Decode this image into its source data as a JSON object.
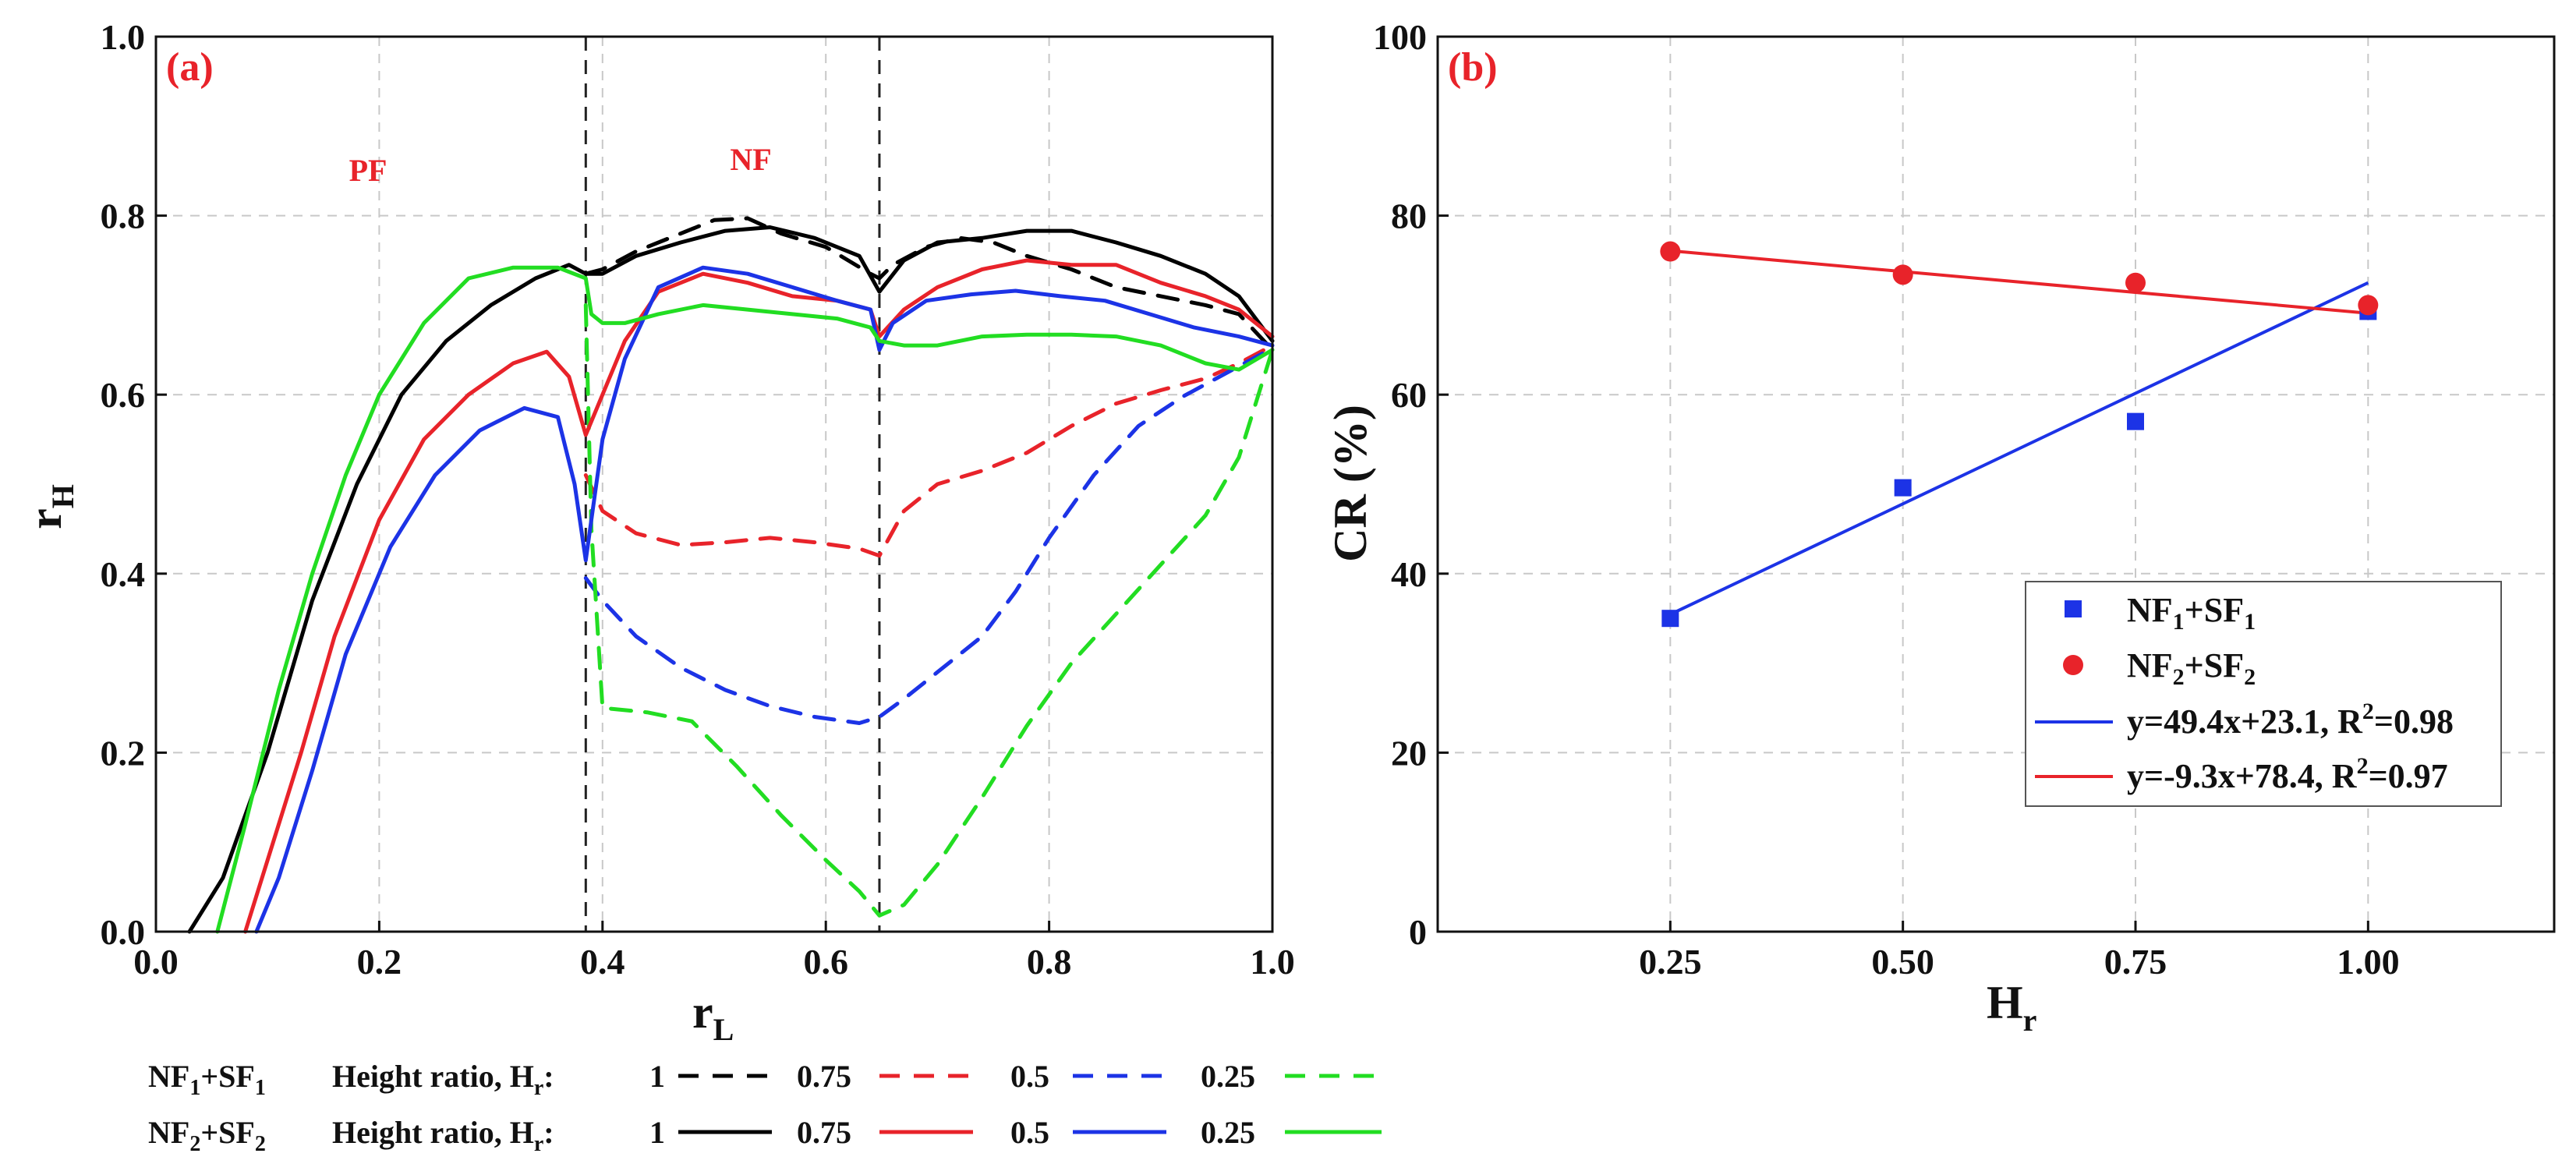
{
  "chart_data": [
    {
      "panel": "(a)",
      "type": "line",
      "xlabel": "r",
      "xlabel_sub": "L",
      "ylabel": "r",
      "ylabel_sub": "H",
      "xlim": [
        0.0,
        1.0
      ],
      "ylim": [
        0.0,
        1.0
      ],
      "x_ticks": [
        "0.0",
        "0.2",
        "0.4",
        "0.6",
        "0.8",
        "1.0"
      ],
      "y_ticks": [
        "0.0",
        "0.2",
        "0.4",
        "0.6",
        "0.8",
        "1.0"
      ],
      "grid": true,
      "region_labels": [
        {
          "text": "PF",
          "x": 0.19,
          "y": 0.85
        },
        {
          "text": "NF",
          "x": 0.53,
          "y": 0.86
        }
      ],
      "vlines": [
        0.385,
        0.648
      ],
      "series": [
        {
          "name": "NF1+SF1, Hr 1",
          "group": "NF1+SF1",
          "hr": "1",
          "color": "#000000",
          "dash": true,
          "x": [
            0.385,
            0.4,
            0.43,
            0.46,
            0.5,
            0.53,
            0.56,
            0.6,
            0.64,
            0.648,
            0.66,
            0.69,
            0.72,
            0.75,
            0.78,
            0.82,
            0.86,
            0.9,
            0.94,
            0.97,
            1.0
          ],
          "y": [
            0.735,
            0.74,
            0.76,
            0.775,
            0.795,
            0.797,
            0.78,
            0.765,
            0.735,
            0.73,
            0.745,
            0.765,
            0.775,
            0.77,
            0.755,
            0.74,
            0.72,
            0.71,
            0.7,
            0.69,
            0.65
          ]
        },
        {
          "name": "NF1+SF1, Hr 0.75",
          "group": "NF1+SF1",
          "hr": "0.75",
          "color": "#e8232a",
          "dash": true,
          "x": [
            0.385,
            0.4,
            0.43,
            0.47,
            0.51,
            0.55,
            0.59,
            0.63,
            0.648,
            0.67,
            0.7,
            0.74,
            0.78,
            0.82,
            0.86,
            0.9,
            0.94,
            0.97,
            1.0
          ],
          "y": [
            0.51,
            0.47,
            0.445,
            0.432,
            0.435,
            0.44,
            0.435,
            0.428,
            0.42,
            0.47,
            0.5,
            0.515,
            0.535,
            0.565,
            0.59,
            0.605,
            0.618,
            0.635,
            0.655
          ]
        },
        {
          "name": "NF1+SF1, Hr 0.5",
          "group": "NF1+SF1",
          "hr": "0.5",
          "color": "#1c33e6",
          "dash": true,
          "x": [
            0.385,
            0.4,
            0.43,
            0.47,
            0.51,
            0.55,
            0.59,
            0.63,
            0.648,
            0.67,
            0.7,
            0.74,
            0.77,
            0.8,
            0.84,
            0.88,
            0.92,
            0.96,
            1.0
          ],
          "y": [
            0.395,
            0.37,
            0.33,
            0.295,
            0.27,
            0.252,
            0.24,
            0.233,
            0.24,
            0.26,
            0.29,
            0.33,
            0.38,
            0.44,
            0.51,
            0.565,
            0.598,
            0.625,
            0.652
          ]
        },
        {
          "name": "NF1+SF1, Hr 0.25",
          "group": "NF1+SF1",
          "hr": "0.25",
          "color": "#22dd22",
          "dash": true,
          "x": [
            0.385,
            0.39,
            0.4,
            0.44,
            0.48,
            0.52,
            0.56,
            0.6,
            0.63,
            0.648,
            0.67,
            0.7,
            0.74,
            0.78,
            0.82,
            0.86,
            0.9,
            0.94,
            0.97,
            1.0
          ],
          "y": [
            0.7,
            0.45,
            0.25,
            0.245,
            0.235,
            0.185,
            0.13,
            0.08,
            0.045,
            0.018,
            0.03,
            0.075,
            0.15,
            0.23,
            0.3,
            0.355,
            0.41,
            0.465,
            0.53,
            0.65
          ]
        },
        {
          "name": "NF2+SF2, Hr 1",
          "group": "NF2+SF2",
          "hr": "1",
          "color": "#000000",
          "dash": false,
          "x": [
            0.03,
            0.06,
            0.1,
            0.14,
            0.18,
            0.22,
            0.26,
            0.3,
            0.34,
            0.37,
            0.385,
            0.4,
            0.43,
            0.47,
            0.51,
            0.55,
            0.59,
            0.63,
            0.648,
            0.67,
            0.7,
            0.74,
            0.78,
            0.82,
            0.86,
            0.9,
            0.94,
            0.97,
            1.0
          ],
          "y": [
            0.0,
            0.06,
            0.2,
            0.37,
            0.5,
            0.6,
            0.66,
            0.7,
            0.73,
            0.745,
            0.735,
            0.735,
            0.755,
            0.77,
            0.783,
            0.787,
            0.775,
            0.755,
            0.715,
            0.75,
            0.77,
            0.775,
            0.783,
            0.783,
            0.77,
            0.755,
            0.735,
            0.71,
            0.66
          ]
        },
        {
          "name": "NF2+SF2, Hr 0.75",
          "group": "NF2+SF2",
          "hr": "0.75",
          "color": "#e8232a",
          "dash": false,
          "x": [
            0.08,
            0.1,
            0.13,
            0.16,
            0.2,
            0.24,
            0.28,
            0.32,
            0.35,
            0.37,
            0.385,
            0.4,
            0.42,
            0.45,
            0.49,
            0.53,
            0.57,
            0.61,
            0.64,
            0.648,
            0.67,
            0.7,
            0.74,
            0.78,
            0.82,
            0.86,
            0.9,
            0.94,
            0.97,
            1.0
          ],
          "y": [
            0.0,
            0.08,
            0.2,
            0.33,
            0.46,
            0.55,
            0.6,
            0.635,
            0.648,
            0.62,
            0.555,
            0.6,
            0.66,
            0.715,
            0.735,
            0.725,
            0.71,
            0.705,
            0.695,
            0.665,
            0.695,
            0.72,
            0.74,
            0.75,
            0.745,
            0.745,
            0.725,
            0.71,
            0.695,
            0.665
          ]
        },
        {
          "name": "NF2+SF2, Hr 0.5",
          "group": "NF2+SF2",
          "hr": "0.5",
          "color": "#1c33e6",
          "dash": false,
          "x": [
            0.09,
            0.11,
            0.14,
            0.17,
            0.21,
            0.25,
            0.29,
            0.33,
            0.36,
            0.375,
            0.385,
            0.4,
            0.42,
            0.45,
            0.49,
            0.53,
            0.57,
            0.61,
            0.64,
            0.648,
            0.66,
            0.69,
            0.73,
            0.77,
            0.81,
            0.85,
            0.89,
            0.93,
            0.97,
            1.0
          ],
          "y": [
            0.0,
            0.06,
            0.18,
            0.31,
            0.43,
            0.51,
            0.56,
            0.585,
            0.575,
            0.5,
            0.415,
            0.55,
            0.64,
            0.72,
            0.742,
            0.735,
            0.72,
            0.705,
            0.695,
            0.65,
            0.68,
            0.705,
            0.712,
            0.716,
            0.71,
            0.705,
            0.69,
            0.675,
            0.665,
            0.655
          ]
        },
        {
          "name": "NF2+SF2, Hr 0.25",
          "group": "NF2+SF2",
          "hr": "0.25",
          "color": "#22dd22",
          "dash": false,
          "x": [
            0.055,
            0.08,
            0.11,
            0.14,
            0.17,
            0.2,
            0.24,
            0.28,
            0.32,
            0.36,
            0.385,
            0.39,
            0.4,
            0.42,
            0.45,
            0.49,
            0.53,
            0.57,
            0.61,
            0.64,
            0.648,
            0.67,
            0.7,
            0.74,
            0.78,
            0.82,
            0.86,
            0.9,
            0.94,
            0.97,
            1.0
          ],
          "y": [
            0.0,
            0.12,
            0.27,
            0.4,
            0.51,
            0.6,
            0.68,
            0.73,
            0.742,
            0.742,
            0.73,
            0.69,
            0.68,
            0.68,
            0.69,
            0.7,
            0.695,
            0.69,
            0.685,
            0.675,
            0.66,
            0.655,
            0.655,
            0.665,
            0.667,
            0.667,
            0.665,
            0.655,
            0.635,
            0.628,
            0.65
          ]
        }
      ],
      "legend": {
        "rows": [
          {
            "group": "NF",
            "group_sub": "1",
            "group_mid": "+SF",
            "group_sub2": "1",
            "label": "Height ratio, H",
            "label_sub": "r",
            "label_end": ":",
            "dash": true,
            "entries": [
              {
                "text": "1",
                "color": "#000000"
              },
              {
                "text": "0.75",
                "color": "#e8232a"
              },
              {
                "text": "0.5",
                "color": "#1c33e6"
              },
              {
                "text": "0.25",
                "color": "#22dd22"
              }
            ]
          },
          {
            "group": "NF",
            "group_sub": "2",
            "group_mid": "+SF",
            "group_sub2": "2",
            "label": "Height ratio, H",
            "label_sub": "r",
            "label_end": ":",
            "dash": false,
            "entries": [
              {
                "text": "1",
                "color": "#000000"
              },
              {
                "text": "0.75",
                "color": "#e8232a"
              },
              {
                "text": "0.5",
                "color": "#1c33e6"
              },
              {
                "text": "0.25",
                "color": "#22dd22"
              }
            ]
          }
        ]
      }
    },
    {
      "panel": "(b)",
      "type": "scatter",
      "xlabel": "H",
      "xlabel_sub": "r",
      "ylabel": "CR (%)",
      "xlim": [
        0.0,
        1.2
      ],
      "ylim": [
        0,
        100
      ],
      "x_ticks": [
        0.25,
        0.5,
        0.75,
        1.0
      ],
      "x_tick_labels": [
        "0.25",
        "0.50",
        "0.75",
        "1.00"
      ],
      "y_ticks": [
        0,
        20,
        40,
        60,
        80,
        100
      ],
      "y_tick_labels": [
        "0",
        "20",
        "40",
        "60",
        "80",
        "100"
      ],
      "grid": true,
      "series": [
        {
          "name": "NF1+SF1",
          "marker": "square",
          "color": "#1c33e6",
          "x": [
            0.25,
            0.5,
            0.75,
            1.0
          ],
          "y": [
            35.0,
            49.6,
            57.0,
            69.3
          ]
        },
        {
          "name": "NF2+SF2",
          "marker": "circle",
          "color": "#e8232a",
          "x": [
            0.25,
            0.5,
            0.75,
            1.0
          ],
          "y": [
            76.0,
            73.4,
            72.5,
            70.0
          ]
        }
      ],
      "fits": [
        {
          "slope": 49.4,
          "intercept": 23.1,
          "r2": 0.98,
          "color": "#1c33e6"
        },
        {
          "slope": -9.3,
          "intercept": 78.4,
          "r2": 0.97,
          "color": "#e8232a"
        }
      ],
      "legend": {
        "position": "lower-right",
        "items": [
          {
            "kind": "square",
            "color": "#1c33e6",
            "pre": "NF",
            "sub1": "1",
            "mid": "+SF",
            "sub2": "1"
          },
          {
            "kind": "circle",
            "color": "#e8232a",
            "pre": "NF",
            "sub1": "2",
            "mid": "+SF",
            "sub2": "2"
          },
          {
            "kind": "line",
            "color": "#1c33e6",
            "pre": "y=49.4x+23.1, R",
            "sup": "2",
            "post": "=0.98"
          },
          {
            "kind": "line",
            "color": "#e8232a",
            "pre": "y=-9.3x+78.4, R",
            "sup": "2",
            "post": "=0.97"
          }
        ]
      }
    }
  ]
}
